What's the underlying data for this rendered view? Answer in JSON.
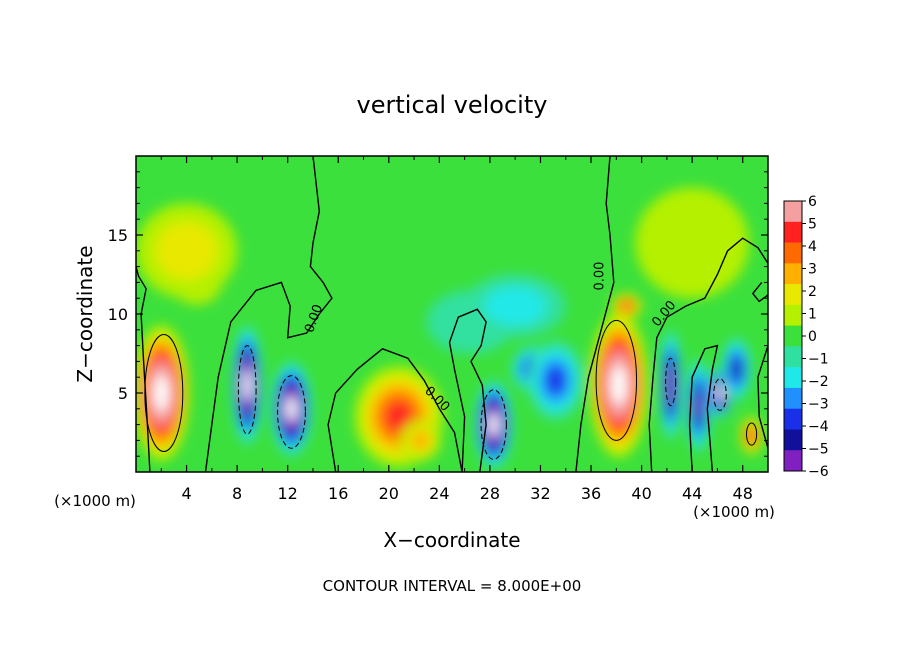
{
  "chart_data": {
    "type": "heatmap",
    "title": "vertical velocity",
    "xlabel": "X−coordinate",
    "ylabel": "Z−coordinate",
    "x_unit": "(×1000 m)",
    "z_unit": "(×1000 m)",
    "footer": "CONTOUR INTERVAL = 8.000E+00",
    "xlim": [
      0,
      50
    ],
    "ylim": [
      0,
      20
    ],
    "xticks": [
      {
        "v": 4,
        "label": "4"
      },
      {
        "v": 8,
        "label": "8"
      },
      {
        "v": 12,
        "label": "12"
      },
      {
        "v": 16,
        "label": "16"
      },
      {
        "v": 20,
        "label": "20"
      },
      {
        "v": 24,
        "label": "24"
      },
      {
        "v": 28,
        "label": "28"
      },
      {
        "v": 32,
        "label": "32"
      },
      {
        "v": 36,
        "label": "36"
      },
      {
        "v": 40,
        "label": "40"
      },
      {
        "v": 44,
        "label": "44"
      },
      {
        "v": 48,
        "label": "48"
      }
    ],
    "yticks": [
      {
        "v": 5,
        "label": "5"
      },
      {
        "v": 10,
        "label": "10"
      },
      {
        "v": 15,
        "label": "15"
      }
    ],
    "colorbar": {
      "range": [
        -6,
        6
      ],
      "ticks": [
        {
          "v": 6,
          "label": "6"
        },
        {
          "v": 5,
          "label": "5"
        },
        {
          "v": 4,
          "label": "4"
        },
        {
          "v": 3,
          "label": "3"
        },
        {
          "v": 2,
          "label": "2"
        },
        {
          "v": 1,
          "label": "1"
        },
        {
          "v": 0,
          "label": "0"
        },
        {
          "v": -1,
          "label": "−1"
        },
        {
          "v": -2,
          "label": "−2"
        },
        {
          "v": -3,
          "label": "−3"
        },
        {
          "v": -4,
          "label": "−4"
        },
        {
          "v": -5,
          "label": "−5"
        },
        {
          "v": -6,
          "label": "−6"
        }
      ],
      "colors": [
        "#f4a0a0",
        "#ff2020",
        "#ff6a00",
        "#ffb000",
        "#e8e800",
        "#b4f000",
        "#3ce03c",
        "#30e0a0",
        "#20e8e8",
        "#2090ff",
        "#1a30e8",
        "#10109a",
        "#8020c0"
      ]
    },
    "contour_labels": [
      {
        "x": 14.1,
        "z": 9.7,
        "text": "0.00",
        "rotate": -70
      },
      {
        "x": 23.8,
        "z": 4.6,
        "text": "0.00",
        "rotate": 45
      },
      {
        "x": 36.7,
        "z": 12.4,
        "text": "0.00",
        "rotate": -90
      },
      {
        "x": 41.8,
        "z": 10.0,
        "text": "0.00",
        "rotate": -50
      }
    ],
    "cells": [
      {
        "x": 2,
        "z": 5,
        "v": 9,
        "rx": 2.2,
        "rz": 4.3
      },
      {
        "x": 4.8,
        "z": 12,
        "v": 3,
        "rx": 2.0,
        "rz": 1.4
      },
      {
        "x": 4,
        "z": 14,
        "v": 1.4,
        "rx": 4.0,
        "rz": 3.0
      },
      {
        "x": 8.8,
        "z": 5.5,
        "v": -9,
        "rx": 1.2,
        "rz": 3.8
      },
      {
        "x": 12.3,
        "z": 4,
        "v": -9,
        "rx": 1.6,
        "rz": 3.0
      },
      {
        "x": 20.8,
        "z": 3.5,
        "v": 4.5,
        "rx": 3.5,
        "rz": 3.2
      },
      {
        "x": 22.5,
        "z": 2.0,
        "v": 3.0,
        "rx": 1.6,
        "rz": 1.3
      },
      {
        "x": 28.3,
        "z": 3.0,
        "v": -9,
        "rx": 1.5,
        "rz": 2.8
      },
      {
        "x": 31.5,
        "z": 6.5,
        "v": -4.5,
        "rx": 1.8,
        "rz": 1.5
      },
      {
        "x": 33.2,
        "z": 5.8,
        "v": -3.2,
        "rx": 2.2,
        "rz": 2.5
      },
      {
        "x": 38.2,
        "z": 5.5,
        "v": 9,
        "rx": 2.3,
        "rz": 4.6
      },
      {
        "x": 38.8,
        "z": 10.5,
        "v": 4.5,
        "rx": 1.2,
        "rz": 0.8
      },
      {
        "x": 42.3,
        "z": 5.5,
        "v": -6.5,
        "rx": 0.9,
        "rz": 3.5
      },
      {
        "x": 44.5,
        "z": 4.2,
        "v": -5.5,
        "rx": 1.0,
        "rz": 3.0
      },
      {
        "x": 46.2,
        "z": 5.0,
        "v": -9,
        "rx": 1.0,
        "rz": 1.6
      },
      {
        "x": 47.5,
        "z": 6.5,
        "v": -4.5,
        "rx": 1.2,
        "rz": 2.0
      },
      {
        "x": 48.7,
        "z": 2.3,
        "v": 5.0,
        "rx": 0.9,
        "rz": 1.2
      },
      {
        "x": 44,
        "z": 14.5,
        "v": 1.0,
        "rx": 4.5,
        "rz": 3.5
      },
      {
        "x": 26.5,
        "z": 9.5,
        "v": -1.0,
        "rx": 3.5,
        "rz": 2.0
      },
      {
        "x": 30,
        "z": 10.5,
        "v": -1.2,
        "rx": 4.0,
        "rz": 2.0
      }
    ]
  }
}
